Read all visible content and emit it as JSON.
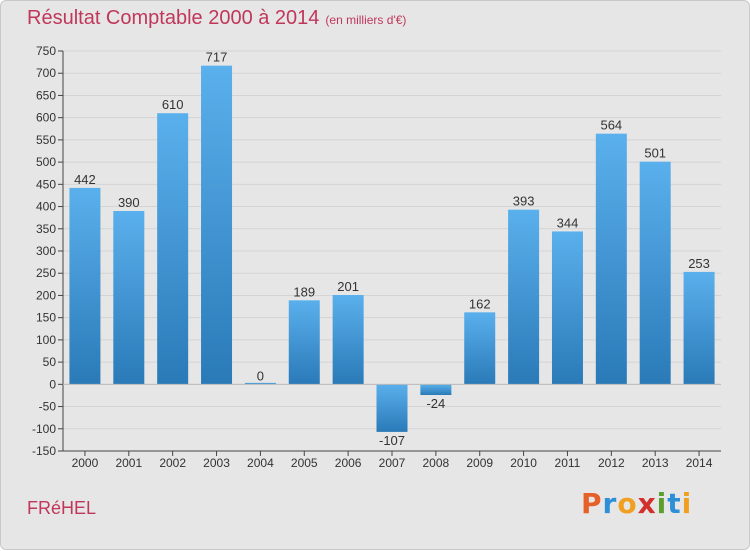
{
  "header": {
    "title": "Résultat Comptable 2000 à 2014",
    "subtitle": "(en milliers d'€)"
  },
  "footer": {
    "town": "FRéHEL",
    "logo_letters": [
      "P",
      "r",
      "o",
      "x",
      "i",
      "t",
      "i"
    ],
    "logo_colors": [
      "#e6602a",
      "#2e8fd6",
      "#f0a020",
      "#d0312d",
      "#5aa02c",
      "#2e8fd6",
      "#f0a020"
    ]
  },
  "colors": {
    "bar_top": "#5ab0ec",
    "bar_bottom": "#2a7ab8",
    "axis": "#444444",
    "grid": "#d4d4d4",
    "text": "#333333"
  },
  "chart_data": {
    "type": "bar",
    "categories": [
      "2000",
      "2001",
      "2002",
      "2003",
      "2004",
      "2005",
      "2006",
      "2007",
      "2008",
      "2009",
      "2010",
      "2011",
      "2012",
      "2013",
      "2014"
    ],
    "values": [
      442,
      390,
      610,
      717,
      0,
      189,
      201,
      -107,
      -24,
      162,
      393,
      344,
      564,
      501,
      253
    ],
    "value_labels": [
      "442",
      "390",
      "610",
      "717",
      "0",
      "189",
      "201",
      "-107",
      "-24",
      "162",
      "393",
      "344",
      "564",
      "501",
      "253"
    ],
    "ylim": [
      -150,
      750
    ],
    "yticks": [
      -150,
      -100,
      -50,
      0,
      50,
      100,
      150,
      200,
      250,
      300,
      350,
      400,
      450,
      500,
      550,
      600,
      650,
      700,
      750
    ],
    "grid": true,
    "title": "Résultat Comptable 2000 à 2014",
    "xlabel": "",
    "ylabel": ""
  }
}
